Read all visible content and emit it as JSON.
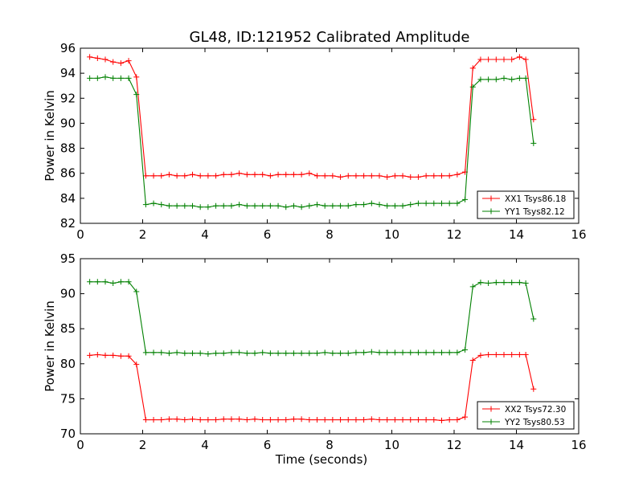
{
  "title": "GL48, ID:121952 Calibrated Amplitude",
  "colors": {
    "red": "#ff0000",
    "green": "#008000"
  },
  "chart_data": [
    {
      "type": "line",
      "title": "GL48, ID:121952 Calibrated Amplitude",
      "xlabel": "",
      "ylabel": "Power in Kelvin",
      "xlim": [
        0,
        16
      ],
      "ylim": [
        82,
        96
      ],
      "xticks": [
        0,
        2,
        4,
        6,
        8,
        10,
        12,
        14,
        16
      ],
      "yticks": [
        82,
        84,
        86,
        88,
        90,
        92,
        94,
        96
      ],
      "grid": false,
      "legend": "lower-right",
      "x": [
        0.3,
        0.55,
        0.8,
        1.05,
        1.3,
        1.55,
        1.8,
        2.1,
        2.35,
        2.6,
        2.85,
        3.1,
        3.35,
        3.6,
        3.85,
        4.1,
        4.35,
        4.6,
        4.85,
        5.1,
        5.35,
        5.6,
        5.85,
        6.1,
        6.35,
        6.6,
        6.85,
        7.1,
        7.35,
        7.6,
        7.85,
        8.1,
        8.35,
        8.6,
        8.85,
        9.1,
        9.35,
        9.6,
        9.85,
        10.1,
        10.35,
        10.6,
        10.85,
        11.1,
        11.35,
        11.6,
        11.85,
        12.1,
        12.35,
        12.6,
        12.85,
        13.1,
        13.35,
        13.6,
        13.85,
        14.1,
        14.3,
        14.55
      ],
      "series": [
        {
          "name": "XX1 Tsys86.18",
          "color": "#ff0000",
          "values": [
            95.3,
            95.2,
            95.1,
            94.9,
            94.8,
            95.0,
            93.7,
            85.8,
            85.8,
            85.8,
            85.9,
            85.8,
            85.8,
            85.9,
            85.8,
            85.8,
            85.8,
            85.9,
            85.9,
            86.0,
            85.9,
            85.9,
            85.9,
            85.8,
            85.9,
            85.9,
            85.9,
            85.9,
            86.0,
            85.8,
            85.8,
            85.8,
            85.7,
            85.8,
            85.8,
            85.8,
            85.8,
            85.8,
            85.7,
            85.8,
            85.8,
            85.7,
            85.7,
            85.8,
            85.8,
            85.8,
            85.8,
            85.9,
            86.1,
            94.4,
            95.1,
            95.1,
            95.1,
            95.1,
            95.1,
            95.3,
            95.1,
            90.3
          ]
        },
        {
          "name": "YY1 Tsys82.12",
          "color": "#008000",
          "values": [
            93.6,
            93.6,
            93.7,
            93.6,
            93.6,
            93.6,
            92.3,
            83.5,
            83.6,
            83.5,
            83.4,
            83.4,
            83.4,
            83.4,
            83.3,
            83.3,
            83.4,
            83.4,
            83.4,
            83.5,
            83.4,
            83.4,
            83.4,
            83.4,
            83.4,
            83.3,
            83.4,
            83.3,
            83.4,
            83.5,
            83.4,
            83.4,
            83.4,
            83.4,
            83.5,
            83.5,
            83.6,
            83.5,
            83.4,
            83.4,
            83.4,
            83.5,
            83.6,
            83.6,
            83.6,
            83.6,
            83.6,
            83.6,
            83.9,
            92.9,
            93.5,
            93.5,
            93.5,
            93.6,
            93.5,
            93.6,
            93.6,
            88.4
          ]
        }
      ]
    },
    {
      "type": "line",
      "title": "",
      "xlabel": "Time (seconds)",
      "ylabel": "Power in Kelvin",
      "xlim": [
        0,
        16
      ],
      "ylim": [
        70,
        95
      ],
      "xticks": [
        0,
        2,
        4,
        6,
        8,
        10,
        12,
        14,
        16
      ],
      "yticks": [
        70,
        75,
        80,
        85,
        90,
        95
      ],
      "grid": false,
      "legend": "lower-right",
      "x": [
        0.3,
        0.55,
        0.8,
        1.05,
        1.3,
        1.55,
        1.8,
        2.1,
        2.35,
        2.6,
        2.85,
        3.1,
        3.35,
        3.6,
        3.85,
        4.1,
        4.35,
        4.6,
        4.85,
        5.1,
        5.35,
        5.6,
        5.85,
        6.1,
        6.35,
        6.6,
        6.85,
        7.1,
        7.35,
        7.6,
        7.85,
        8.1,
        8.35,
        8.6,
        8.85,
        9.1,
        9.35,
        9.6,
        9.85,
        10.1,
        10.35,
        10.6,
        10.85,
        11.1,
        11.35,
        11.6,
        11.85,
        12.1,
        12.35,
        12.6,
        12.85,
        13.1,
        13.35,
        13.6,
        13.85,
        14.1,
        14.3,
        14.55
      ],
      "series": [
        {
          "name": "XX2 Tsys72.30",
          "color": "#ff0000",
          "values": [
            81.2,
            81.3,
            81.2,
            81.2,
            81.1,
            81.1,
            79.9,
            72.0,
            72.0,
            72.0,
            72.1,
            72.1,
            72.0,
            72.1,
            72.0,
            72.0,
            72.0,
            72.1,
            72.1,
            72.1,
            72.0,
            72.1,
            72.0,
            72.0,
            72.0,
            72.0,
            72.1,
            72.1,
            72.0,
            72.0,
            72.0,
            72.0,
            72.0,
            72.0,
            72.0,
            72.0,
            72.1,
            72.0,
            72.0,
            72.0,
            72.0,
            72.0,
            72.0,
            72.0,
            72.0,
            71.9,
            72.0,
            72.0,
            72.4,
            80.5,
            81.2,
            81.3,
            81.3,
            81.3,
            81.3,
            81.3,
            81.3,
            76.4
          ]
        },
        {
          "name": "YY2 Tsys80.53",
          "color": "#008000",
          "values": [
            91.7,
            91.7,
            91.7,
            91.5,
            91.7,
            91.7,
            90.3,
            81.6,
            81.6,
            81.6,
            81.5,
            81.6,
            81.5,
            81.5,
            81.5,
            81.4,
            81.5,
            81.5,
            81.6,
            81.6,
            81.5,
            81.5,
            81.6,
            81.5,
            81.5,
            81.5,
            81.5,
            81.5,
            81.5,
            81.5,
            81.6,
            81.5,
            81.5,
            81.5,
            81.6,
            81.6,
            81.7,
            81.6,
            81.6,
            81.6,
            81.6,
            81.6,
            81.6,
            81.6,
            81.6,
            81.6,
            81.6,
            81.6,
            82.0,
            91.0,
            91.6,
            91.5,
            91.6,
            91.6,
            91.6,
            91.6,
            91.5,
            86.4
          ]
        }
      ]
    }
  ]
}
